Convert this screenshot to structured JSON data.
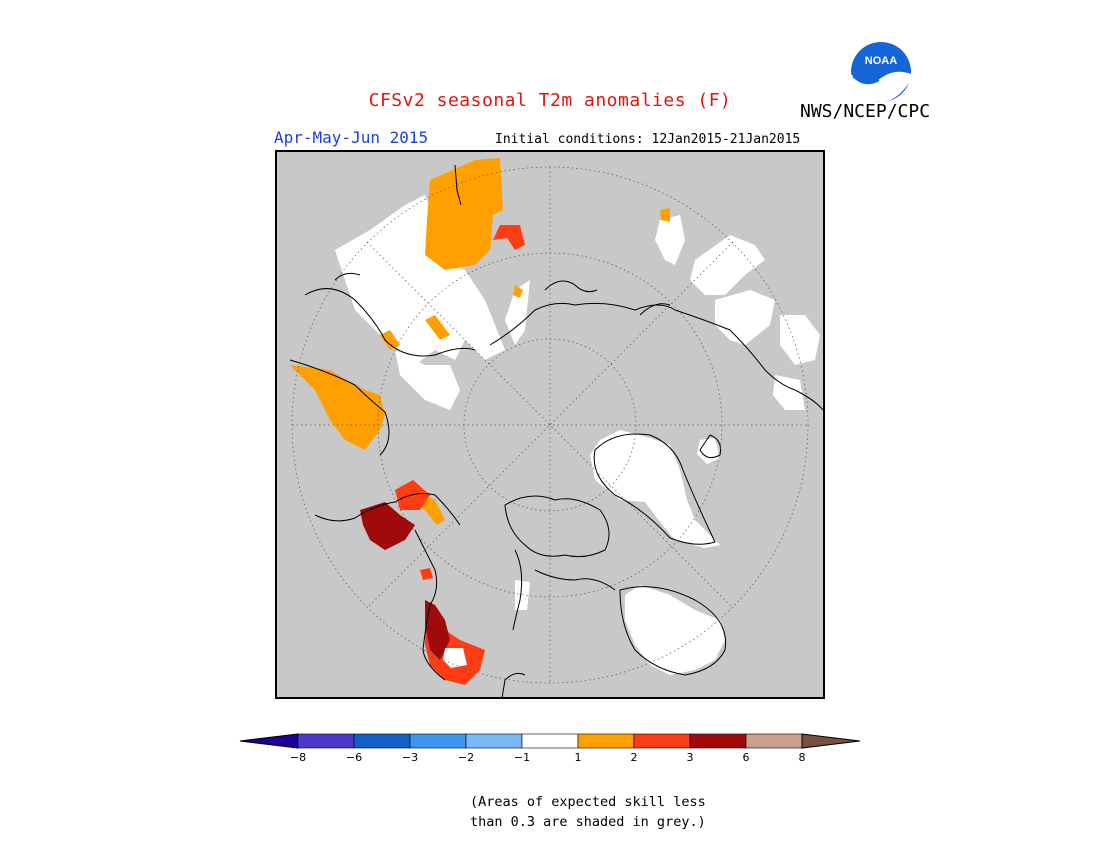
{
  "header": {
    "title": "CFSv2 seasonal T2m anomalies (F)",
    "agency": "NWS/NCEP/CPC",
    "season": "Apr-May-Jun 2015",
    "initial_conditions": "Initial conditions: 12Jan2015-21Jan2015"
  },
  "logo": {
    "icon": "noaa-logo",
    "text": "NOAA"
  },
  "map": {
    "projection": "north-polar-stereographic",
    "background_color": "#c8c8c8",
    "coastline_color": "#000000",
    "grid_color": "#666666"
  },
  "legend": {
    "ticks": [
      "−8",
      "−6",
      "−3",
      "−2",
      "−1",
      "1",
      "2",
      "3",
      "6",
      "8"
    ],
    "colors": [
      "#1e0096",
      "#4a3acc",
      "#1460c8",
      "#3c96f0",
      "#78b8f5",
      "#ffffff",
      "#ffa000",
      "#ff3c14",
      "#a00a0a",
      "#c8a08c",
      "#785040"
    ]
  },
  "footnote": {
    "line1": "(Areas of expected skill less",
    "line2": "than 0.3 are shaded in grey.)"
  }
}
